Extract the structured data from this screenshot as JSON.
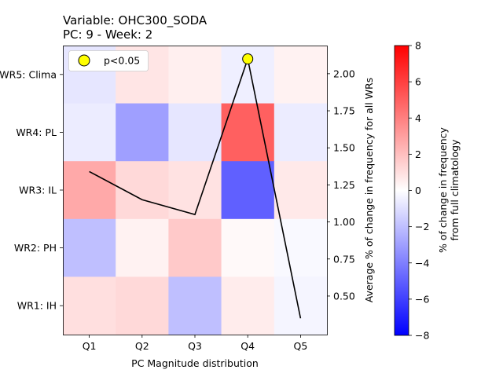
{
  "chart_data": {
    "type": "heatmap",
    "title_lines": [
      "Variable: OHC300_SODA",
      "PC: 9 - Week: 2"
    ],
    "xlabel": "PC Magnitude distribution",
    "x_categories": [
      "Q1",
      "Q2",
      "Q3",
      "Q4",
      "Q5"
    ],
    "y_categories_top_to_bottom": [
      "WR5: Clima",
      "WR4: PL",
      "WR3: IL",
      "WR2: PH",
      "WR1: IH"
    ],
    "heatmap_values_top_to_bottom": [
      [
        -0.8,
        0.8,
        0.5,
        -0.5,
        0.4
      ],
      [
        -0.6,
        -3.0,
        -0.8,
        5.0,
        -0.6
      ],
      [
        2.7,
        1.2,
        0.9,
        -5.0,
        0.7
      ],
      [
        -2.0,
        0.4,
        1.7,
        0.2,
        -0.2
      ],
      [
        1.0,
        1.2,
        -2.0,
        0.6,
        -0.3
      ]
    ],
    "colorbar": {
      "label_lines": [
        "% of change in frequency",
        "from full climatology"
      ],
      "range": [
        -8,
        8
      ],
      "ticks": [
        -8,
        -6,
        -4,
        -2,
        0,
        2,
        4,
        6,
        8
      ],
      "colormap": "bwr"
    },
    "line_series": {
      "x": [
        "Q1",
        "Q2",
        "Q3",
        "Q4",
        "Q5"
      ],
      "values": [
        1.34,
        1.15,
        1.05,
        2.1,
        0.35
      ],
      "color": "#000000"
    },
    "right_axis": {
      "label": "Average % of change in frequency for all WRs",
      "ylim": [
        0.24,
        2.19
      ],
      "ticks": [
        0.5,
        0.75,
        1.0,
        1.25,
        1.5,
        1.75,
        2.0
      ],
      "tick_labels": [
        "0.50",
        "0.75",
        "1.00",
        "1.25",
        "1.50",
        "1.75",
        "2.00"
      ]
    },
    "significance_markers": [
      {
        "x": "Q4",
        "y": 2.1
      }
    ],
    "legend": {
      "position": "top-left",
      "entries": [
        "p<0.05"
      ],
      "marker_color": "#ffff00"
    }
  }
}
